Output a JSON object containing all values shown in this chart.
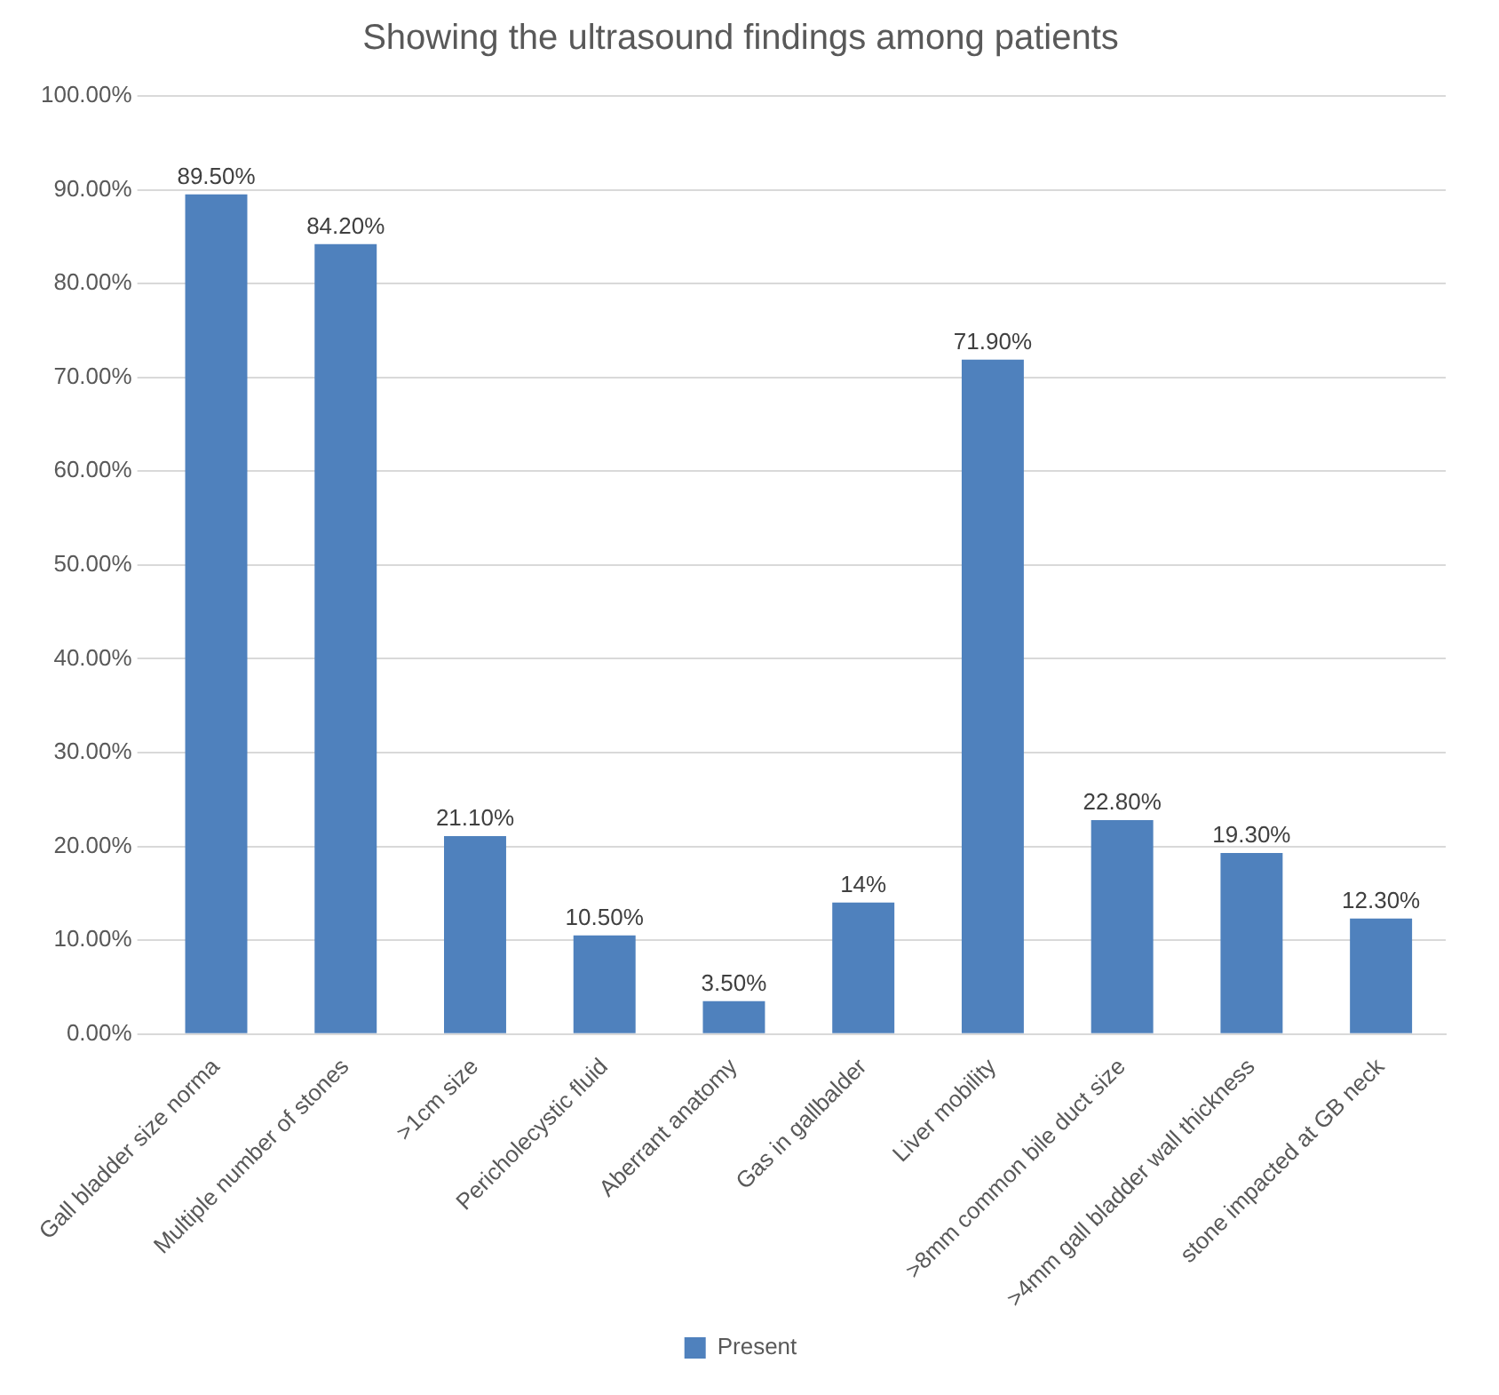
{
  "chart_data": {
    "type": "bar",
    "title": "Showing the ultrasound findings among patients",
    "categories": [
      "Gall bladder size norma",
      "Multiple number of stones",
      ">1cm size",
      "Pericholecystic fluid",
      "Aberrant anatomy",
      "Gas in gallbalder",
      "Liver mobility",
      ">8mm common bile duct size",
      ">4mm gall bladder wall thickness",
      "stone impacted at GB neck"
    ],
    "series": [
      {
        "name": "Present",
        "color": "#4f81bd",
        "values": [
          89.5,
          84.2,
          21.1,
          10.5,
          3.5,
          14,
          71.9,
          22.8,
          19.3,
          12.3
        ],
        "value_labels": [
          "89.50%",
          "84.20%",
          "21.10%",
          "10.50%",
          "3.50%",
          "14%",
          "71.90%",
          "22.80%",
          "19.30%",
          "12.30%"
        ]
      }
    ],
    "ylim": [
      0,
      100
    ],
    "yticks": [
      {
        "value": 0,
        "label": "0.00%"
      },
      {
        "value": 10,
        "label": "10.00%"
      },
      {
        "value": 20,
        "label": "20.00%"
      },
      {
        "value": 30,
        "label": "30.00%"
      },
      {
        "value": 40,
        "label": "40.00%"
      },
      {
        "value": 50,
        "label": "50.00%"
      },
      {
        "value": 60,
        "label": "60.00%"
      },
      {
        "value": 70,
        "label": "70.00%"
      },
      {
        "value": 80,
        "label": "80.00%"
      },
      {
        "value": 90,
        "label": "90.00%"
      },
      {
        "value": 100,
        "label": "100.00%"
      }
    ],
    "grid": "y",
    "legend": "bottom"
  }
}
